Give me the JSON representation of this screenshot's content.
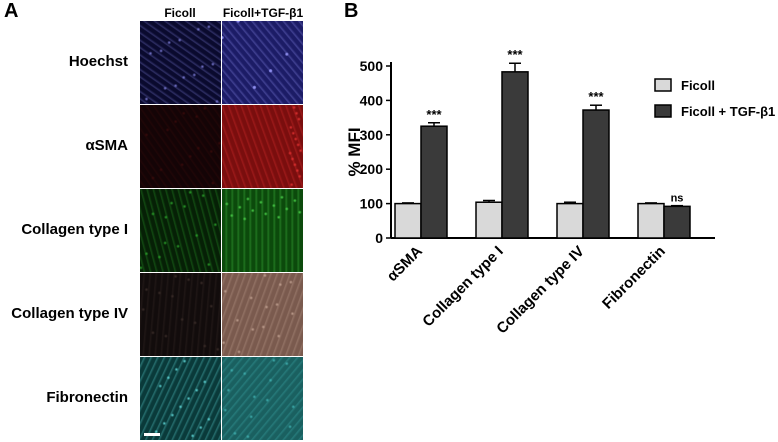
{
  "panel_a": {
    "letter": "A",
    "columns": [
      "Ficoll",
      "Ficoll+TGF-β1"
    ],
    "rows": [
      {
        "label": "Hoechst",
        "colors": [
          "#0a0a2e",
          "#1c1c66"
        ],
        "accent": [
          "#7b7bd6",
          "#8f8ff0"
        ]
      },
      {
        "label": "αSMA",
        "colors": [
          "#140406",
          "#7a0e0e"
        ],
        "accent": [
          "#3a0a0a",
          "#e03030"
        ]
      },
      {
        "label": "Collagen type I",
        "colors": [
          "#062006",
          "#0c4a0c"
        ],
        "accent": [
          "#2aa02a",
          "#4ad24a"
        ]
      },
      {
        "label": "Collagen type IV",
        "colors": [
          "#120c0c",
          "#7a5a4e"
        ],
        "accent": [
          "#3a2c28",
          "#c0a090"
        ]
      },
      {
        "label": "Fibronectin",
        "colors": [
          "#0a3a3a",
          "#1a6060"
        ],
        "accent": [
          "#5fd8d8",
          "#3fb0b0"
        ]
      }
    ]
  },
  "panel_b": {
    "letter": "B",
    "chart_data": {
      "type": "bar",
      "categories": [
        "αSMA",
        "Collagen type I",
        "Collagen type IV",
        "Fibronectin"
      ],
      "series": [
        {
          "name": "Ficoll",
          "color": "#d9d9d9",
          "values": [
            100,
            104,
            100,
            100
          ],
          "errors": [
            2,
            5,
            4,
            2
          ]
        },
        {
          "name": "Ficoll + TGF-β1",
          "color": "#3a3a3a",
          "values": [
            325,
            483,
            372,
            92
          ],
          "errors": [
            10,
            25,
            14,
            2
          ]
        }
      ],
      "significance": [
        "***",
        "***",
        "***",
        "ns"
      ],
      "ylabel": "% MFI",
      "xlabel": "",
      "ylim": [
        0,
        500
      ],
      "yticks": [
        0,
        100,
        200,
        300,
        400,
        500
      ],
      "legend_position": "top-right"
    }
  }
}
